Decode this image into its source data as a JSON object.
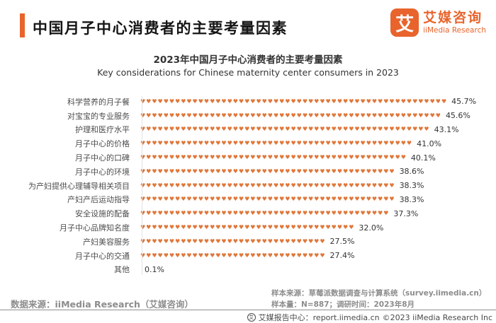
{
  "header": {
    "title": "中国月子中心消费者的主要考量因素"
  },
  "logo": {
    "glyph": "艾",
    "name_cn": "艾媒咨询",
    "name_en": "iiMedia Research"
  },
  "chart_data": {
    "type": "bar",
    "subtype": "horizontal-heart-pictogram",
    "title": "2023年中国月子中心消费者的主要考量因素",
    "subtitle": "Key considerations for Chinese maternity center consumers in 2023",
    "categories": [
      "科学营养的月子餐",
      "对宝宝的专业服务",
      "护理和医疗水平",
      "月子中心的价格",
      "月子中心的口碑",
      "月子中心的环境",
      "为产妇提供心理辅导相关项目",
      "产妇产后运动指导",
      "安全设施的配备",
      "月子中心品牌知名度",
      "产妇美容服务",
      "月子中心的交通",
      "其他"
    ],
    "values": [
      45.7,
      45.6,
      43.1,
      41.0,
      40.1,
      38.6,
      38.3,
      38.3,
      37.3,
      32.0,
      27.5,
      27.4,
      0.1
    ],
    "value_labels": [
      "45.7%",
      "45.6%",
      "43.1%",
      "41.0%",
      "40.1%",
      "38.6%",
      "38.3%",
      "38.3%",
      "37.3%",
      "32.0%",
      "27.5%",
      "27.4%",
      "0.1%"
    ],
    "xlabel": "",
    "ylabel": "",
    "xlim": [
      0,
      50
    ],
    "grid": "off",
    "legend": "none",
    "bar_color": "#e0773a",
    "marker_glyph": "♥"
  },
  "footer": {
    "data_source": "数据来源：iiMedia Research（艾媒咨询）",
    "sample_source": "样本来源：草莓派数据调查与计算系统（survey.iimedia.cn）",
    "sample_info": "样本量：N=887；调研时间：2023年8月",
    "report_center": "艾媒报告中心：report.iimedia.cn",
    "copyright": "©2023  iiMedia Research Inc",
    "report_icon_glyph": "艾"
  }
}
